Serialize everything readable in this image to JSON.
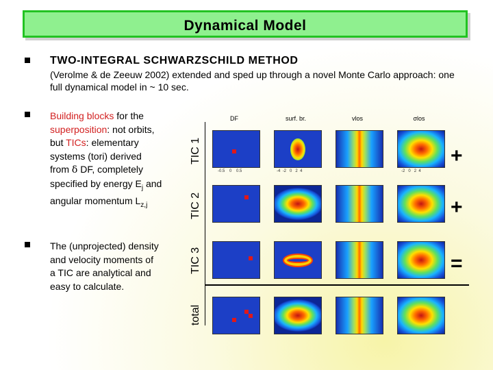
{
  "slide": {
    "title": "Dynamical Model",
    "heading": "TWO-INTEGRAL SCHWARZSCHILD METHOD",
    "subtext": "(Verolme & de Zeeuw 2002) extended and sped up through a novel Monte Carlo approach: one full dynamical model in ~ 10 sec.",
    "para1": {
      "t1": "Building blocks",
      "t2": " for the ",
      "t3": "superposition",
      "t4": ": not orbits, but ",
      "t5": "TICs",
      "t6": ": elementary systems (tori) derived from ",
      "t7": "δ",
      "t8": " DF, completely specified by energy E",
      "t9": "j",
      "t10": " and angular momentum L",
      "t11": "z,j"
    },
    "para2": "The (unprojected) density and velocity moments of a TIC are analytical and easy to calculate."
  },
  "figure": {
    "columns": [
      "DF",
      "surf. br.",
      "vlos",
      "σlos"
    ],
    "rows": [
      "TIC 1",
      "TIC 2",
      "TIC 3",
      "total"
    ],
    "signs": [
      "+",
      "+",
      "="
    ],
    "tick_labels": [
      "-0.5",
      "0",
      "0.5",
      "-4",
      "-2",
      "0",
      "2",
      "4",
      "-2",
      "0",
      "2",
      "4"
    ]
  },
  "colors": {
    "title_border": "#22c322",
    "title_fill": "#8ff08f",
    "highlight": "#d22020"
  }
}
